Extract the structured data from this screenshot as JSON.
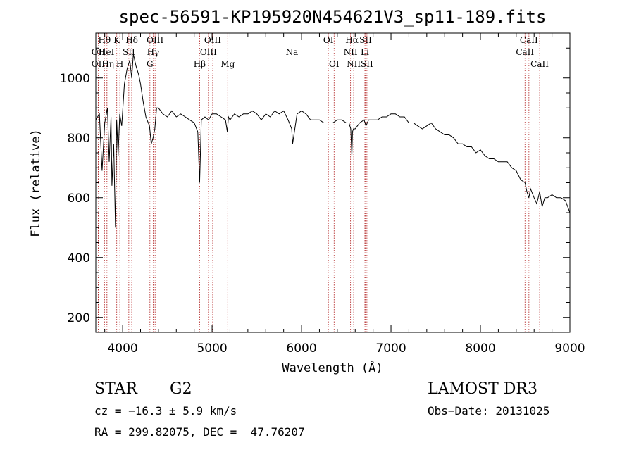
{
  "chart_data": {
    "type": "line",
    "title": "spec-56591-KP195920N454621V3_sp11-189.fits",
    "xlabel": "Wavelength (Å)",
    "ylabel": "Flux (relative)",
    "xlim": [
      3700,
      9000
    ],
    "ylim": [
      150,
      1150
    ],
    "xticks": [
      4000,
      5000,
      6000,
      7000,
      8000,
      9000
    ],
    "yticks": [
      200,
      400,
      600,
      800,
      1000
    ],
    "series": [
      {
        "name": "flux",
        "x": [
          3700,
          3740,
          3770,
          3800,
          3830,
          3850,
          3870,
          3880,
          3900,
          3920,
          3933,
          3950,
          3968,
          3990,
          4020,
          4050,
          4080,
          4102,
          4120,
          4150,
          4180,
          4200,
          4230,
          4260,
          4300,
          4320,
          4340,
          4360,
          4380,
          4400,
          4450,
          4500,
          4550,
          4600,
          4650,
          4700,
          4750,
          4800,
          4840,
          4861,
          4880,
          4920,
          4960,
          5000,
          5050,
          5100,
          5150,
          5170,
          5183,
          5200,
          5250,
          5300,
          5350,
          5400,
          5450,
          5500,
          5550,
          5600,
          5650,
          5700,
          5750,
          5800,
          5850,
          5890,
          5900,
          5950,
          6000,
          6050,
          6100,
          6150,
          6200,
          6250,
          6300,
          6350,
          6400,
          6450,
          6500,
          6530,
          6550,
          6563,
          6570,
          6580,
          6600,
          6650,
          6700,
          6720,
          6750,
          6800,
          6850,
          6900,
          6950,
          7000,
          7050,
          7100,
          7150,
          7200,
          7250,
          7300,
          7350,
          7400,
          7450,
          7500,
          7550,
          7600,
          7650,
          7700,
          7750,
          7800,
          7850,
          7900,
          7950,
          8000,
          8050,
          8100,
          8150,
          8200,
          8250,
          8300,
          8350,
          8400,
          8450,
          8498,
          8520,
          8542,
          8560,
          8600,
          8630,
          8662,
          8690,
          8720,
          8750,
          8800,
          8850,
          8900,
          8950,
          9000
        ],
        "y": [
          860,
          880,
          690,
          850,
          900,
          720,
          870,
          640,
          780,
          500,
          860,
          740,
          880,
          840,
          980,
          1030,
          1060,
          1000,
          1080,
          1040,
          1010,
          980,
          920,
          870,
          840,
          780,
          800,
          830,
          900,
          900,
          880,
          870,
          890,
          870,
          880,
          870,
          860,
          850,
          820,
          650,
          860,
          870,
          860,
          880,
          880,
          870,
          860,
          820,
          870,
          860,
          880,
          870,
          880,
          880,
          890,
          880,
          860,
          880,
          870,
          890,
          880,
          890,
          860,
          830,
          780,
          880,
          890,
          880,
          860,
          860,
          860,
          850,
          850,
          850,
          860,
          860,
          850,
          850,
          830,
          740,
          820,
          830,
          830,
          850,
          860,
          840,
          860,
          860,
          860,
          870,
          870,
          880,
          880,
          870,
          870,
          850,
          850,
          840,
          830,
          840,
          850,
          830,
          820,
          810,
          810,
          800,
          780,
          780,
          770,
          770,
          750,
          760,
          740,
          730,
          730,
          720,
          720,
          720,
          700,
          690,
          660,
          650,
          620,
          600,
          630,
          600,
          580,
          620,
          570,
          600,
          600,
          610,
          600,
          600,
          590,
          550
        ]
      }
    ],
    "lines": [
      {
        "label": "Hθ",
        "wave": 3797,
        "row": 1
      },
      {
        "label": "OII",
        "wave": 3727,
        "row": 2
      },
      {
        "label": "OII",
        "wave": 3727,
        "row": 3
      },
      {
        "label": "HeI",
        "wave": 3820,
        "row": 2
      },
      {
        "label": "Hη",
        "wave": 3835,
        "row": 3
      },
      {
        "label": "K",
        "wave": 3934,
        "row": 1
      },
      {
        "label": "SII",
        "wave": 4069,
        "row": 2
      },
      {
        "label": "H",
        "wave": 3969,
        "row": 3
      },
      {
        "label": "Hδ",
        "wave": 4102,
        "row": 1
      },
      {
        "label": "OIII",
        "wave": 4363,
        "row": 1
      },
      {
        "label": "Hγ",
        "wave": 4341,
        "row": 2
      },
      {
        "label": "G",
        "wave": 4305,
        "row": 3
      },
      {
        "label": "OIII",
        "wave": 5007,
        "row": 1
      },
      {
        "label": "OIII",
        "wave": 4959,
        "row": 2
      },
      {
        "label": "Hβ",
        "wave": 4861,
        "row": 3
      },
      {
        "label": "Mg",
        "wave": 5175,
        "row": 3
      },
      {
        "label": "Na",
        "wave": 5893,
        "row": 2
      },
      {
        "label": "OI",
        "wave": 6300,
        "row": 1
      },
      {
        "label": "OI",
        "wave": 6364,
        "row": 3
      },
      {
        "label": "Hα",
        "wave": 6563,
        "row": 1
      },
      {
        "label": "NII",
        "wave": 6548,
        "row": 2
      },
      {
        "label": "NII",
        "wave": 6583,
        "row": 3
      },
      {
        "label": "SII",
        "wave": 6716,
        "row": 1
      },
      {
        "label": "Li",
        "wave": 6708,
        "row": 2
      },
      {
        "label": "SII",
        "wave": 6731,
        "row": 3
      },
      {
        "label": "CaII",
        "wave": 8542,
        "row": 1
      },
      {
        "label": "CaII",
        "wave": 8498,
        "row": 2
      },
      {
        "label": "CaII",
        "wave": 8662,
        "row": 3
      }
    ],
    "line_color": "#b22222"
  },
  "info": {
    "class": "STAR",
    "subclass": "G2",
    "survey": "LAMOST DR3",
    "cz": "cz = −16.3 ± 5.9 km/s",
    "obs_date": "Obs−Date: 20131025",
    "coords": "RA = 299.82075, DEC =  47.76207"
  }
}
